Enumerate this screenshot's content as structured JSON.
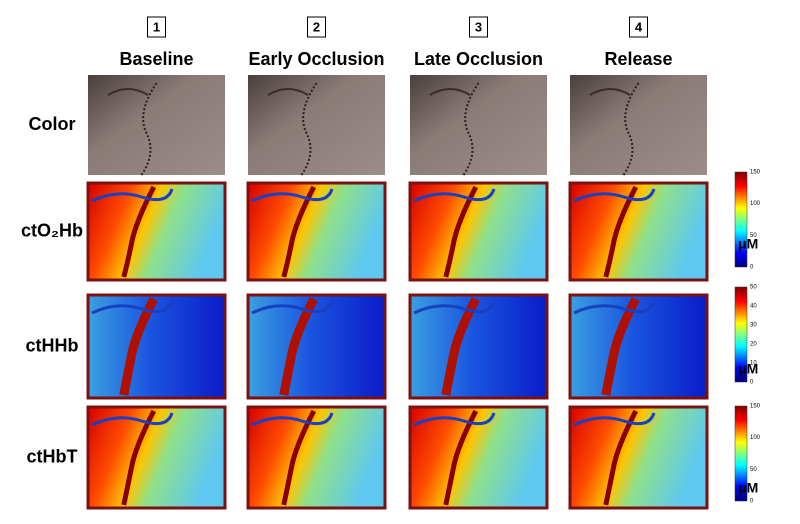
{
  "columns": [
    {
      "number": "1",
      "title": "Baseline"
    },
    {
      "number": "2",
      "title": "Early Occlusion"
    },
    {
      "number": "3",
      "title": "Late Occlusion"
    },
    {
      "number": "4",
      "title": "Release"
    }
  ],
  "rows": [
    {
      "label": "Color"
    },
    {
      "label": "ctO₂Hb",
      "colorbar": {
        "ticks": [
          0,
          50,
          100,
          150
        ],
        "unit": "μM"
      }
    },
    {
      "label": "ctHHb",
      "colorbar": {
        "ticks": [
          0,
          10,
          20,
          30,
          40,
          50
        ],
        "unit": "μM"
      }
    },
    {
      "label": "ctHbT",
      "colorbar": {
        "ticks": [
          0,
          50,
          100,
          150
        ],
        "unit": "μM"
      }
    }
  ]
}
